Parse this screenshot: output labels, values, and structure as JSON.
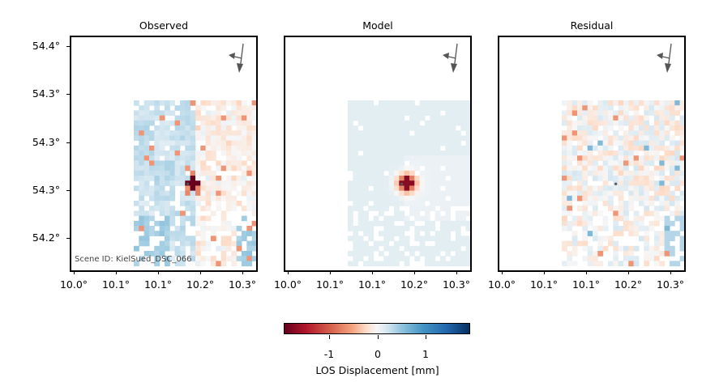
{
  "chart_data": [
    {
      "type": "heatmap",
      "title": "Observed",
      "xlabel": "",
      "ylabel": "",
      "xticks": [
        "10.0°",
        "10.1°",
        "10.1°",
        "10.2°",
        "10.3°"
      ],
      "yticks": [
        "54.4°",
        "54.3°",
        "54.3°",
        "54.3°",
        "54.2°"
      ],
      "annotation": "Scene ID: KielSued_DSC_066",
      "colormap": "RdBu",
      "vmin": -1.9,
      "vmax": 1.9,
      "grid": false,
      "data_extent_note": "gridded LOS displacement cells (mm), approx",
      "seed": 11,
      "style": "observed"
    },
    {
      "type": "heatmap",
      "title": "Model",
      "xticks": [
        "10.0°",
        "10.1°",
        "10.1°",
        "10.2°",
        "10.3°"
      ],
      "yticks": [],
      "colormap": "RdBu",
      "vmin": -1.9,
      "vmax": 1.9,
      "grid": false,
      "seed": 23,
      "style": "model"
    },
    {
      "type": "heatmap",
      "title": "Residual",
      "xticks": [
        "10.0°",
        "10.1°",
        "10.1°",
        "10.2°",
        "10.3°"
      ],
      "yticks": [],
      "colormap": "RdBu",
      "vmin": -1.9,
      "vmax": 1.9,
      "grid": false,
      "seed": 37,
      "style": "residual"
    }
  ],
  "colorbar": {
    "label": "LOS Displacement [mm]",
    "ticks": [
      "-1",
      "0",
      "1"
    ],
    "tick_values": [
      -1,
      0,
      1
    ],
    "range": [
      -1.9,
      1.9
    ]
  },
  "icons": {
    "north_arrow": "look-direction-arrow-icon"
  }
}
